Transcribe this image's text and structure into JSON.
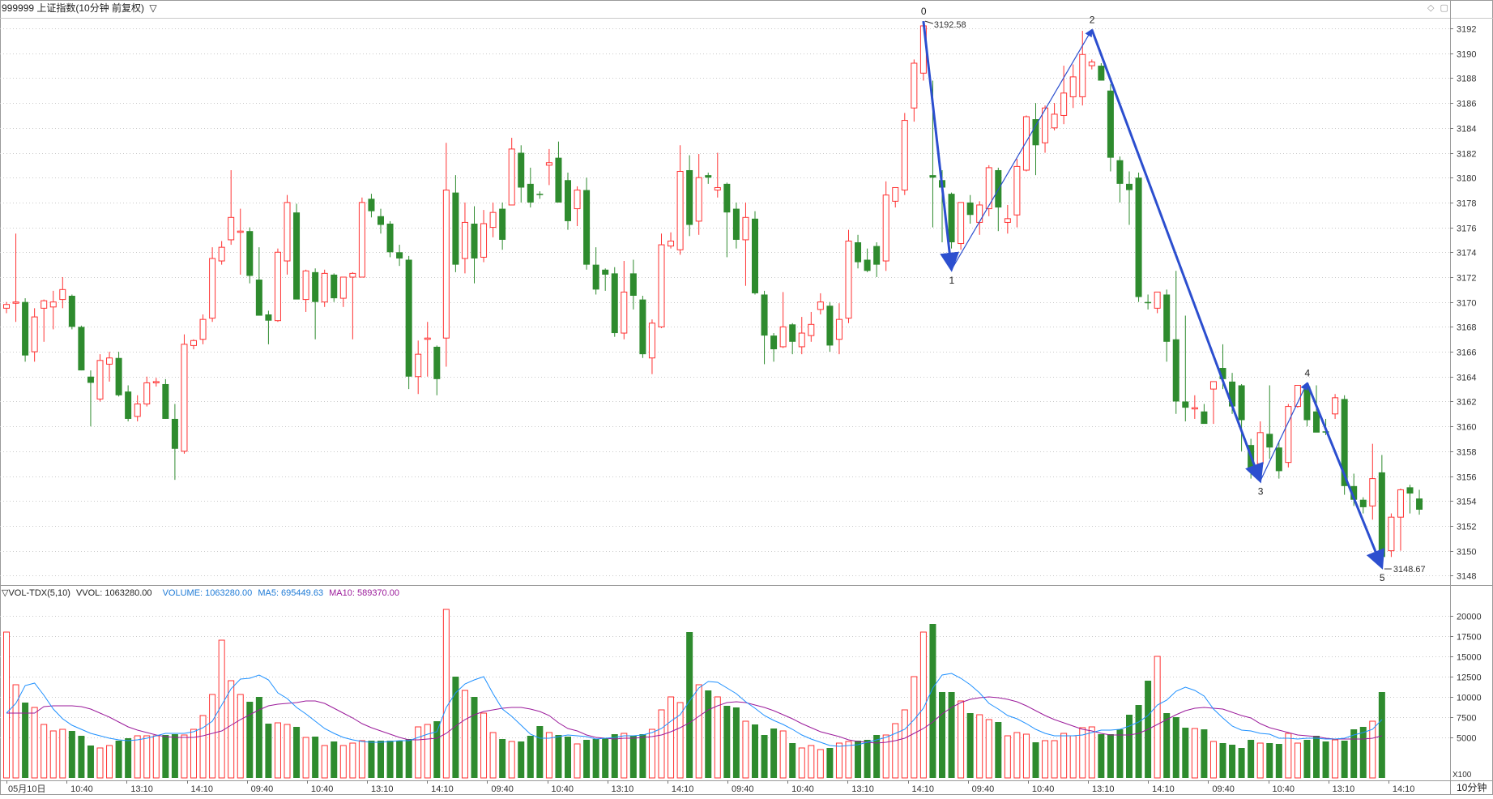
{
  "header": {
    "title": "999999 上证指数(10分钟 前复权)",
    "menu_glyph": "▽",
    "window_icons": [
      "◇",
      "▢"
    ]
  },
  "price": {
    "y_ticks": [
      "3192",
      "3190",
      "3188",
      "3186",
      "3184",
      "3182",
      "3180",
      "3178",
      "3176",
      "3174",
      "3172",
      "3170",
      "3168",
      "3166",
      "3164",
      "3162",
      "3160",
      "3158",
      "3156",
      "3154",
      "3152",
      "3150",
      "3148"
    ],
    "high_label": "3192.58",
    "low_label": "3148.67",
    "wave_labels": [
      "0",
      "1",
      "2",
      "3",
      "4",
      "5"
    ]
  },
  "volume": {
    "title": "▽VOL-TDX(5,10)",
    "vvol": "VVOL: 1063280.00",
    "volume": "VOLUME: 1063280.00",
    "ma5": "MA5: 695449.63",
    "ma10": "MA10: 589370.00",
    "y_ticks": [
      "20000",
      "17500",
      "15000",
      "12500",
      "10000",
      "7500",
      "5000"
    ],
    "unit": "X100"
  },
  "time_axis": {
    "labels": [
      "05月10日",
      "10:40",
      "13:10",
      "14:10",
      "09:40",
      "10:40",
      "13:10",
      "14:10",
      "09:40",
      "10:40",
      "13:10",
      "14:10",
      "09:40",
      "10:40",
      "13:10",
      "14:10",
      "09:40",
      "10:40",
      "13:10",
      "14:10",
      "09:40",
      "10:40",
      "13:10",
      "14:10"
    ],
    "period": "10分钟"
  },
  "colors": {
    "up": "#ff3232",
    "down": "#2e8b2e",
    "wave": "#2c4fcf",
    "ma5": "#1e90ff",
    "ma10": "#9b1b9b",
    "volume_text": "#1e7ad6"
  },
  "chart_data": {
    "type": "candlestick",
    "title": "999999 上证指数(10分钟 前复权)",
    "y_range": [
      3147.5,
      3193.5
    ],
    "volume_range": [
      0,
      22000
    ],
    "candles_ohlc": [
      [
        3169.5,
        3170.0,
        3169.1,
        3169.8
      ],
      [
        3169.9,
        3175.5,
        3168.4,
        3170.0
      ],
      [
        3170.0,
        3170.3,
        3165.2,
        3165.7
      ],
      [
        3166.0,
        3169.5,
        3165.2,
        3168.8
      ],
      [
        3169.5,
        3170.2,
        3166.8,
        3170.1
      ],
      [
        3169.6,
        3170.9,
        3167.8,
        3170.0
      ],
      [
        3170.2,
        3172.0,
        3169.5,
        3171.0
      ],
      [
        3170.5,
        3170.6,
        3167.8,
        3168.0
      ],
      [
        3168.0,
        3168.1,
        3164.5,
        3164.5
      ],
      [
        3164.0,
        3164.5,
        3160.0,
        3163.5
      ],
      [
        3162.2,
        3165.8,
        3162.0,
        3165.3
      ],
      [
        3165.0,
        3166.0,
        3163.6,
        3165.5
      ],
      [
        3165.5,
        3166.0,
        3162.4,
        3162.5
      ],
      [
        3162.8,
        3163.3,
        3160.4,
        3160.6
      ],
      [
        3160.8,
        3162.5,
        3160.4,
        3161.8
      ],
      [
        3161.8,
        3164.0,
        3161.6,
        3163.5
      ],
      [
        3163.5,
        3163.9,
        3163.2,
        3163.6
      ],
      [
        3163.4,
        3163.8,
        3160.6,
        3160.6
      ],
      [
        3160.6,
        3161.8,
        3155.7,
        3158.2
      ],
      [
        3158.0,
        3167.4,
        3157.8,
        3166.6
      ],
      [
        3166.5,
        3167.0,
        3166.2,
        3166.9
      ],
      [
        3167.0,
        3169.0,
        3166.6,
        3168.6
      ],
      [
        3168.7,
        3174.4,
        3168.4,
        3173.5
      ],
      [
        3173.3,
        3174.9,
        3173.0,
        3174.4
      ],
      [
        3175.0,
        3180.6,
        3174.6,
        3176.8
      ],
      [
        3175.6,
        3177.5,
        3172.2,
        3175.7
      ],
      [
        3175.7,
        3176.0,
        3171.5,
        3172.1
      ],
      [
        3171.8,
        3174.4,
        3170.0,
        3168.9
      ],
      [
        3169.0,
        3169.3,
        3166.6,
        3168.5
      ],
      [
        3168.5,
        3174.3,
        3168.4,
        3174.0
      ],
      [
        3173.3,
        3178.6,
        3172.2,
        3178.0
      ],
      [
        3177.2,
        3177.9,
        3173.8,
        3170.2
      ],
      [
        3170.2,
        3172.6,
        3169.2,
        3172.5
      ],
      [
        3172.4,
        3172.7,
        3167.0,
        3170.0
      ],
      [
        3170.0,
        3172.6,
        3169.6,
        3172.3
      ],
      [
        3172.2,
        3172.3,
        3170.0,
        3170.3
      ],
      [
        3170.3,
        3172.0,
        3169.6,
        3172.0
      ],
      [
        3172.0,
        3172.4,
        3167.0,
        3172.3
      ],
      [
        3172.0,
        3178.4,
        3172.0,
        3178.0
      ],
      [
        3178.3,
        3178.7,
        3176.8,
        3177.3
      ],
      [
        3176.9,
        3177.5,
        3175.5,
        3176.2
      ],
      [
        3176.3,
        3176.5,
        3173.6,
        3174.0
      ],
      [
        3174.0,
        3174.6,
        3172.9,
        3173.5
      ],
      [
        3173.4,
        3173.7,
        3163.0,
        3164.0
      ],
      [
        3164.0,
        3166.9,
        3162.6,
        3165.8
      ],
      [
        3167.0,
        3168.4,
        3164.0,
        3167.1
      ],
      [
        3166.4,
        3166.5,
        3162.5,
        3163.8
      ],
      [
        3167.1,
        3182.8,
        3164.8,
        3179.0
      ],
      [
        3178.8,
        3180.2,
        3172.4,
        3173.0
      ],
      [
        3173.5,
        3178.0,
        3172.3,
        3176.4
      ],
      [
        3176.3,
        3177.7,
        3171.5,
        3173.5
      ],
      [
        3173.6,
        3177.4,
        3173.2,
        3176.3
      ],
      [
        3176.0,
        3178.0,
        3175.2,
        3177.2
      ],
      [
        3177.5,
        3178.0,
        3174.2,
        3175.0
      ],
      [
        3177.8,
        3183.2,
        3177.8,
        3182.3
      ],
      [
        3182.0,
        3182.6,
        3178.0,
        3179.2
      ],
      [
        3179.5,
        3180.8,
        3177.6,
        3178.0
      ],
      [
        3178.7,
        3178.9,
        3178.3,
        3178.6
      ],
      [
        3181.0,
        3182.3,
        3179.4,
        3181.2
      ],
      [
        3181.6,
        3182.9,
        3178.6,
        3178.0
      ],
      [
        3179.8,
        3180.4,
        3175.8,
        3176.5
      ],
      [
        3177.5,
        3179.3,
        3176.1,
        3179.0
      ],
      [
        3179.0,
        3180.0,
        3172.6,
        3173.0
      ],
      [
        3173.0,
        3174.4,
        3170.6,
        3171.0
      ],
      [
        3172.6,
        3172.7,
        3170.9,
        3172.2
      ],
      [
        3172.3,
        3172.8,
        3167.2,
        3167.5
      ],
      [
        3167.5,
        3173.3,
        3167.0,
        3170.8
      ],
      [
        3172.3,
        3173.4,
        3169.4,
        3170.5
      ],
      [
        3170.2,
        3170.5,
        3165.5,
        3165.8
      ],
      [
        3165.5,
        3168.6,
        3164.2,
        3168.3
      ],
      [
        3168.0,
        3175.5,
        3167.9,
        3174.6
      ],
      [
        3174.5,
        3175.6,
        3174.3,
        3174.9
      ],
      [
        3174.2,
        3182.6,
        3173.8,
        3180.5
      ],
      [
        3180.6,
        3181.8,
        3175.3,
        3176.2
      ],
      [
        3176.5,
        3181.9,
        3175.4,
        3180.0
      ],
      [
        3180.2,
        3180.4,
        3179.5,
        3180.0
      ],
      [
        3179.0,
        3182.0,
        3178.4,
        3179.2
      ],
      [
        3179.5,
        3179.6,
        3173.6,
        3177.2
      ],
      [
        3177.5,
        3178.0,
        3174.3,
        3175.0
      ],
      [
        3175.0,
        3178.0,
        3171.3,
        3176.8
      ],
      [
        3176.7,
        3177.3,
        3170.6,
        3170.7
      ],
      [
        3170.6,
        3170.9,
        3165.0,
        3167.3
      ],
      [
        3167.3,
        3167.5,
        3165.2,
        3166.2
      ],
      [
        3166.4,
        3170.8,
        3166.3,
        3168.0
      ],
      [
        3168.2,
        3168.3,
        3165.8,
        3166.8
      ],
      [
        3166.4,
        3168.8,
        3165.8,
        3167.5
      ],
      [
        3167.3,
        3169.2,
        3166.8,
        3168.2
      ],
      [
        3169.4,
        3170.7,
        3169.0,
        3170.0
      ],
      [
        3169.7,
        3170.0,
        3166.0,
        3166.5
      ],
      [
        3167.0,
        3169.9,
        3165.8,
        3168.6
      ],
      [
        3168.7,
        3175.8,
        3168.3,
        3174.9
      ],
      [
        3174.8,
        3175.4,
        3172.7,
        3173.2
      ],
      [
        3173.4,
        3174.3,
        3172.4,
        3172.5
      ],
      [
        3174.5,
        3174.8,
        3172.0,
        3173.0
      ],
      [
        3173.3,
        3179.7,
        3172.5,
        3178.6
      ],
      [
        3178.1,
        3178.9,
        3177.6,
        3179.2
      ],
      [
        3179.0,
        3185.2,
        3178.6,
        3184.6
      ],
      [
        3185.6,
        3189.5,
        3184.5,
        3189.2
      ],
      [
        3188.4,
        3192.5,
        3187.8,
        3192.2
      ],
      [
        3180.2,
        3187.8,
        3176.0,
        3180.0
      ],
      [
        3179.8,
        3180.6,
        3174.8,
        3179.2
      ],
      [
        3178.7,
        3178.8,
        3174.3,
        3174.8
      ],
      [
        3174.7,
        3177.5,
        3174.2,
        3178.0
      ],
      [
        3178.0,
        3178.6,
        3176.3,
        3177.0
      ],
      [
        3176.4,
        3178.1,
        3175.4,
        3177.8
      ],
      [
        3177.5,
        3181.0,
        3176.9,
        3180.8
      ],
      [
        3180.6,
        3180.8,
        3175.7,
        3177.6
      ],
      [
        3176.4,
        3177.8,
        3175.5,
        3176.7
      ],
      [
        3177.0,
        3181.5,
        3176.0,
        3180.9
      ],
      [
        3180.6,
        3185.0,
        3180.5,
        3184.9
      ],
      [
        3184.7,
        3186.0,
        3180.2,
        3182.6
      ],
      [
        3182.8,
        3185.8,
        3182.0,
        3185.6
      ],
      [
        3184.0,
        3186.0,
        3183.8,
        3185.1
      ],
      [
        3185.0,
        3189.0,
        3184.3,
        3186.8
      ],
      [
        3186.5,
        3189.1,
        3185.6,
        3188.1
      ],
      [
        3186.5,
        3191.8,
        3185.8,
        3189.9
      ],
      [
        3189.0,
        3189.5,
        3188.7,
        3189.3
      ],
      [
        3189.0,
        3189.2,
        3187.8,
        3187.8
      ],
      [
        3187.0,
        3187.5,
        3180.5,
        3181.6
      ],
      [
        3181.4,
        3181.7,
        3178.0,
        3179.5
      ],
      [
        3179.5,
        3180.5,
        3176.2,
        3179.0
      ],
      [
        3180.0,
        3180.4,
        3170.0,
        3170.4
      ],
      [
        3170.0,
        3170.6,
        3169.4,
        3169.9
      ],
      [
        3169.5,
        3170.8,
        3169.1,
        3170.8
      ],
      [
        3170.6,
        3171.0,
        3165.2,
        3166.8
      ],
      [
        3167.0,
        3172.5,
        3161.0,
        3162.0
      ],
      [
        3162.0,
        3168.9,
        3160.4,
        3161.5
      ],
      [
        3161.4,
        3162.5,
        3160.6,
        3161.5
      ],
      [
        3161.2,
        3161.8,
        3160.4,
        3160.2
      ],
      [
        3163.0,
        3163.5,
        3160.2,
        3163.6
      ],
      [
        3164.7,
        3166.6,
        3163.0,
        3163.8
      ],
      [
        3163.6,
        3164.3,
        3161.0,
        3161.6
      ],
      [
        3163.3,
        3163.4,
        3158.0,
        3160.5
      ],
      [
        3158.5,
        3159.0,
        3155.8,
        3156.4
      ],
      [
        3157.0,
        3160.4,
        3155.6,
        3159.5
      ],
      [
        3159.4,
        3163.3,
        3157.4,
        3158.3
      ],
      [
        3158.3,
        3158.8,
        3155.8,
        3156.4
      ],
      [
        3157.1,
        3161.8,
        3156.7,
        3161.6
      ],
      [
        3161.6,
        3163.1,
        3161.5,
        3163.3
      ],
      [
        3163.2,
        3163.4,
        3160.0,
        3160.5
      ],
      [
        3161.2,
        3163.3,
        3159.9,
        3159.5
      ],
      [
        3159.6,
        3160.6,
        3159.3,
        3159.5
      ],
      [
        3161.0,
        3162.6,
        3160.6,
        3162.3
      ],
      [
        3162.2,
        3162.5,
        3154.5,
        3155.2
      ],
      [
        3155.2,
        3156.2,
        3153.6,
        3154.1
      ],
      [
        3154.1,
        3154.3,
        3153.0,
        3153.5
      ],
      [
        3153.6,
        3158.6,
        3152.5,
        3155.8
      ],
      [
        3156.3,
        3157.7,
        3150.0,
        3149.5
      ],
      [
        3150.0,
        3153.0,
        3149.5,
        3152.7
      ],
      [
        3152.7,
        3155.0,
        3150.0,
        3154.9
      ],
      [
        3155.1,
        3155.3,
        3153.0,
        3154.6
      ],
      [
        3154.2,
        3154.9,
        3152.9,
        3153.3
      ]
    ],
    "volume_bars": [
      18000,
      11500,
      9300,
      8700,
      6600,
      5800,
      6000,
      5800,
      5200,
      4000,
      3700,
      4000,
      4600,
      4900,
      5200,
      5200,
      5200,
      5300,
      5400,
      5300,
      6000,
      7700,
      10300,
      17000,
      12000,
      10300,
      9400,
      10000,
      6700,
      6800,
      6600,
      6300,
      5000,
      5100,
      4000,
      4500,
      4000,
      4300,
      4600,
      4600,
      4600,
      4600,
      4600,
      4800,
      6300,
      6600,
      7000,
      20800,
      12500,
      10800,
      10000,
      8000,
      5600,
      4800,
      4500,
      4500,
      5200,
      6400,
      5600,
      5300,
      5100,
      4200,
      4700,
      4800,
      4900,
      5400,
      5500,
      5200,
      5400,
      6000,
      8400,
      10000,
      9300,
      18000,
      11500,
      10800,
      10000,
      8900,
      8700,
      7000,
      6600,
      5300,
      6100,
      5800,
      4300,
      3700,
      4000,
      3500,
      3700,
      4300,
      4500,
      4600,
      4700,
      5300,
      5300,
      6700,
      8400,
      12500,
      18000,
      19000,
      10600,
      10600,
      9500,
      8000,
      7800,
      7200,
      6900,
      5200,
      5600,
      5400,
      4400,
      4600,
      4600,
      5500,
      5200,
      6200,
      6300,
      5400,
      5400,
      6000,
      7800,
      9000,
      12000,
      15000,
      8000,
      7500,
      6200,
      6100,
      6000,
      4500,
      4300,
      4100,
      3700,
      4700,
      4300,
      4300,
      4200,
      5500,
      4300,
      4700,
      5200,
      4500,
      4700,
      4600,
      6000,
      6300,
      7000,
      10600
    ],
    "ma5": [
      8000,
      9200,
      11400,
      11700,
      10200,
      8500,
      7300,
      6500,
      6000,
      5500,
      5200,
      4900,
      4700,
      4600,
      4700,
      4900,
      5200,
      5500,
      5500,
      5500,
      5700,
      6200,
      7000,
      9000,
      11000,
      12200,
      12300,
      12700,
      12100,
      10500,
      9800,
      8700,
      7900,
      7000,
      6100,
      5500,
      5000,
      4700,
      4500,
      4400,
      4400,
      4500,
      4600,
      4600,
      5000,
      5400,
      5700,
      8700,
      10500,
      11600,
      12100,
      12500,
      10400,
      8500,
      7600,
      6500,
      5400,
      4900,
      4900,
      5100,
      5300,
      5200,
      5100,
      4800,
      4900,
      5000,
      5200,
      5200,
      5300,
      5600,
      6100,
      7000,
      7800,
      9500,
      11100,
      11900,
      11800,
      11100,
      10400,
      9400,
      8600,
      7700,
      7100,
      6600,
      6000,
      5300,
      4800,
      4400,
      4000,
      3900,
      4000,
      4100,
      4400,
      4700,
      5000,
      5500,
      6000,
      7200,
      8600,
      11100,
      12700,
      12900,
      12300,
      11500,
      10500,
      9200,
      8500,
      7700,
      7300,
      6700,
      6000,
      5500,
      5200,
      5200,
      5200,
      5300,
      5600,
      5900,
      5900,
      6000,
      6400,
      6900,
      7700,
      9000,
      9600,
      10700,
      11200,
      10800,
      10100,
      8500,
      7400,
      6400,
      5900,
      5800,
      5500,
      5400,
      4900,
      4900,
      4800,
      4900,
      4900,
      4800,
      4800,
      4900,
      5300,
      5600,
      6000,
      7200
    ],
    "ma10": [
      8000,
      8000,
      8000,
      8000,
      8800,
      8900,
      8900,
      8900,
      8800,
      8500,
      8000,
      7500,
      6900,
      6300,
      5900,
      5600,
      5300,
      5100,
      5000,
      5000,
      5000,
      5200,
      5500,
      5800,
      6500,
      7200,
      7800,
      8400,
      8900,
      9100,
      9200,
      9300,
      9500,
      9500,
      9200,
      8600,
      8000,
      7400,
      6700,
      6200,
      5800,
      5400,
      5000,
      4700,
      4700,
      4800,
      4900,
      5500,
      6400,
      7200,
      7800,
      8200,
      8400,
      8600,
      8700,
      8700,
      8500,
      8200,
      7700,
      6800,
      6100,
      5800,
      5300,
      5000,
      4900,
      4800,
      4900,
      4900,
      5000,
      5100,
      5300,
      5700,
      6200,
      6800,
      7600,
      8400,
      8900,
      9300,
      9400,
      9300,
      9000,
      8700,
      8300,
      7800,
      7300,
      6700,
      6200,
      5700,
      5400,
      5100,
      4700,
      4500,
      4400,
      4300,
      4400,
      4600,
      4900,
      5500,
      6100,
      6900,
      7900,
      8700,
      9300,
      9700,
      9900,
      10000,
      9900,
      9700,
      9400,
      8900,
      8300,
      7700,
      7200,
      6800,
      6400,
      6000,
      5800,
      5500,
      5300,
      5300,
      5300,
      5500,
      6000,
      6600,
      7200,
      7800,
      8300,
      8600,
      8700,
      8600,
      8500,
      8100,
      7700,
      7400,
      6700,
      6200,
      5900,
      5600,
      5300,
      5200,
      5100,
      4900,
      4800,
      4800,
      4800,
      4800,
      4900,
      5200
    ],
    "wave_points": [
      {
        "label": "0",
        "index": 98,
        "price": 3192.58
      },
      {
        "label": "1",
        "index": 101,
        "price": 3172.6
      },
      {
        "label": "2",
        "index": 116,
        "price": 3191.9
      },
      {
        "label": "3",
        "index": 134,
        "price": 3155.6
      },
      {
        "label": "4",
        "index": 139,
        "price": 3163.5
      },
      {
        "label": "5",
        "index": 147,
        "price": 3148.67
      }
    ]
  }
}
